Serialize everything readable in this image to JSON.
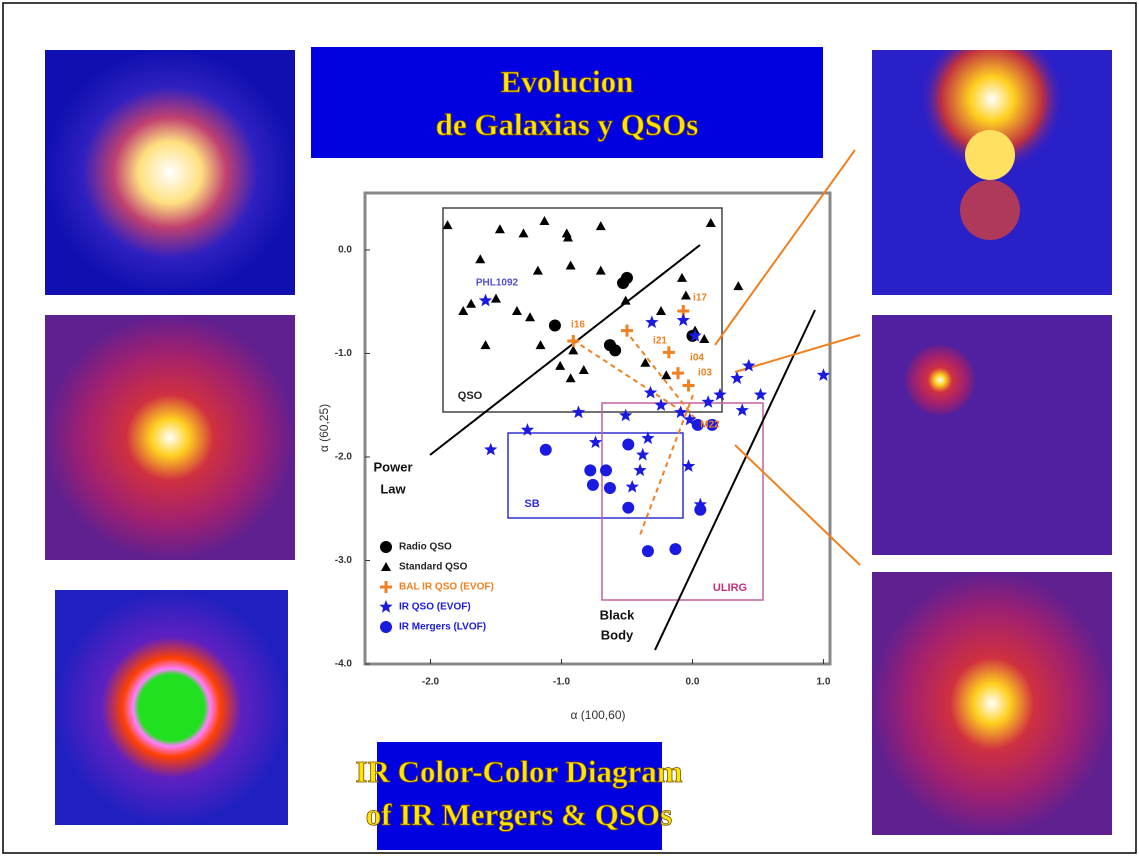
{
  "slide": {
    "title_lines": [
      "Evolucion",
      "de Galaxias y QSOs"
    ],
    "caption_lines": [
      "IR Color-Color Diagram",
      "of IR Mergers & QSOs"
    ]
  },
  "chart_data": {
    "type": "scatter",
    "x_label": "α (100,60)",
    "y_label": "α (60,25)",
    "xlim": [
      -2.5,
      1.05
    ],
    "ylim": [
      -4.0,
      0.55
    ],
    "xticks": [
      {
        "value": -2,
        "label": "-2.0"
      },
      {
        "value": -1,
        "label": "-1.0"
      },
      {
        "value": 0,
        "label": "0.0"
      },
      {
        "value": 1,
        "label": "1.0"
      }
    ],
    "yticks": [
      {
        "value": 0,
        "label": "0.0"
      },
      {
        "value": -1,
        "label": "-1.0"
      },
      {
        "value": -2,
        "label": "-2.0"
      },
      {
        "value": -3,
        "label": "-3.0"
      },
      {
        "value": -4,
        "label": "-4.0"
      }
    ],
    "legend": "lower left",
    "series": [
      {
        "name": "Radio QSO",
        "color": "#000000",
        "marker": "circle",
        "x": [
          -0.5,
          -0.53,
          -1.05,
          -0.63,
          -0.59,
          0.0
        ],
        "values": [
          -0.27,
          -0.32,
          -0.73,
          -0.92,
          -0.97,
          -0.83
        ]
      },
      {
        "name": "Standard QSO",
        "color": "#000000",
        "marker": "triangle",
        "x": [
          -1.13,
          -0.96,
          -0.95,
          -1.29,
          -1.47,
          -1.87,
          -0.7,
          0.14,
          -1.62,
          -0.93,
          -0.7,
          -1.18,
          -1.75,
          -1.69,
          -1.5,
          -1.34,
          -1.24,
          -1.58,
          -1.16,
          -1.01,
          -0.93,
          -0.83,
          -0.51,
          -0.24,
          -0.08,
          -0.05,
          0.02,
          0.09,
          0.35,
          -0.2,
          -0.36,
          -0.91
        ],
        "values": [
          0.28,
          0.16,
          0.12,
          0.16,
          0.2,
          0.24,
          0.23,
          0.26,
          -0.09,
          -0.15,
          -0.2,
          -0.2,
          -0.59,
          -0.52,
          -0.47,
          -0.59,
          -0.65,
          -0.92,
          -0.92,
          -1.12,
          -1.24,
          -1.16,
          -0.49,
          -0.59,
          -0.27,
          -0.44,
          -0.78,
          -0.86,
          -0.35,
          -1.21,
          -1.09,
          -0.97
        ]
      },
      {
        "name": "BAL IR QSO (EVOF)",
        "color": "#f08020",
        "marker": "plus",
        "x": [
          -0.91,
          -0.07,
          -0.18,
          -0.11,
          -0.03,
          -0.5
        ],
        "values": [
          -0.88,
          -0.59,
          -0.99,
          -1.19,
          -1.31,
          -0.78
        ]
      },
      {
        "name": "IR QSO (EVOF)",
        "color": "#1a1ae0",
        "marker": "star",
        "x": [
          -1.58,
          -0.07,
          0.02,
          -0.31,
          0.43,
          0.34,
          0.21,
          0.12,
          0.52,
          0.38,
          1.0,
          -0.02,
          -0.09,
          -0.32,
          -0.24,
          -0.87,
          -1.26,
          -1.54,
          -0.34,
          -0.38,
          -0.4,
          -0.46,
          -0.74,
          -0.51,
          -0.03,
          0.06
        ],
        "values": [
          -0.49,
          -0.68,
          -0.83,
          -0.7,
          -1.12,
          -1.24,
          -1.4,
          -1.47,
          -1.4,
          -1.55,
          -1.21,
          -1.64,
          -1.57,
          -1.38,
          -1.5,
          -1.57,
          -1.74,
          -1.93,
          -1.82,
          -1.98,
          -2.13,
          -2.29,
          -1.86,
          -1.6,
          -2.09,
          -2.46
        ]
      },
      {
        "name": "IR Mergers (LVOF)",
        "color": "#1a1ae0",
        "marker": "circle",
        "x": [
          -1.12,
          -0.49,
          -0.78,
          -0.66,
          -0.76,
          -0.63,
          -0.49,
          0.04,
          0.15,
          0.06,
          -0.13,
          -0.34
        ],
        "values": [
          -1.93,
          -1.88,
          -2.13,
          -2.13,
          -2.27,
          -2.3,
          -2.49,
          -1.69,
          -1.69,
          -2.51,
          -2.89,
          -2.91
        ]
      }
    ],
    "annotations": [
      "PHL1092",
      "QSO",
      "SB",
      "ULIRG",
      "Power",
      "Law",
      "Black",
      "Body",
      "i16",
      "i17",
      "i21",
      "i04",
      "i03",
      "M22"
    ]
  }
}
